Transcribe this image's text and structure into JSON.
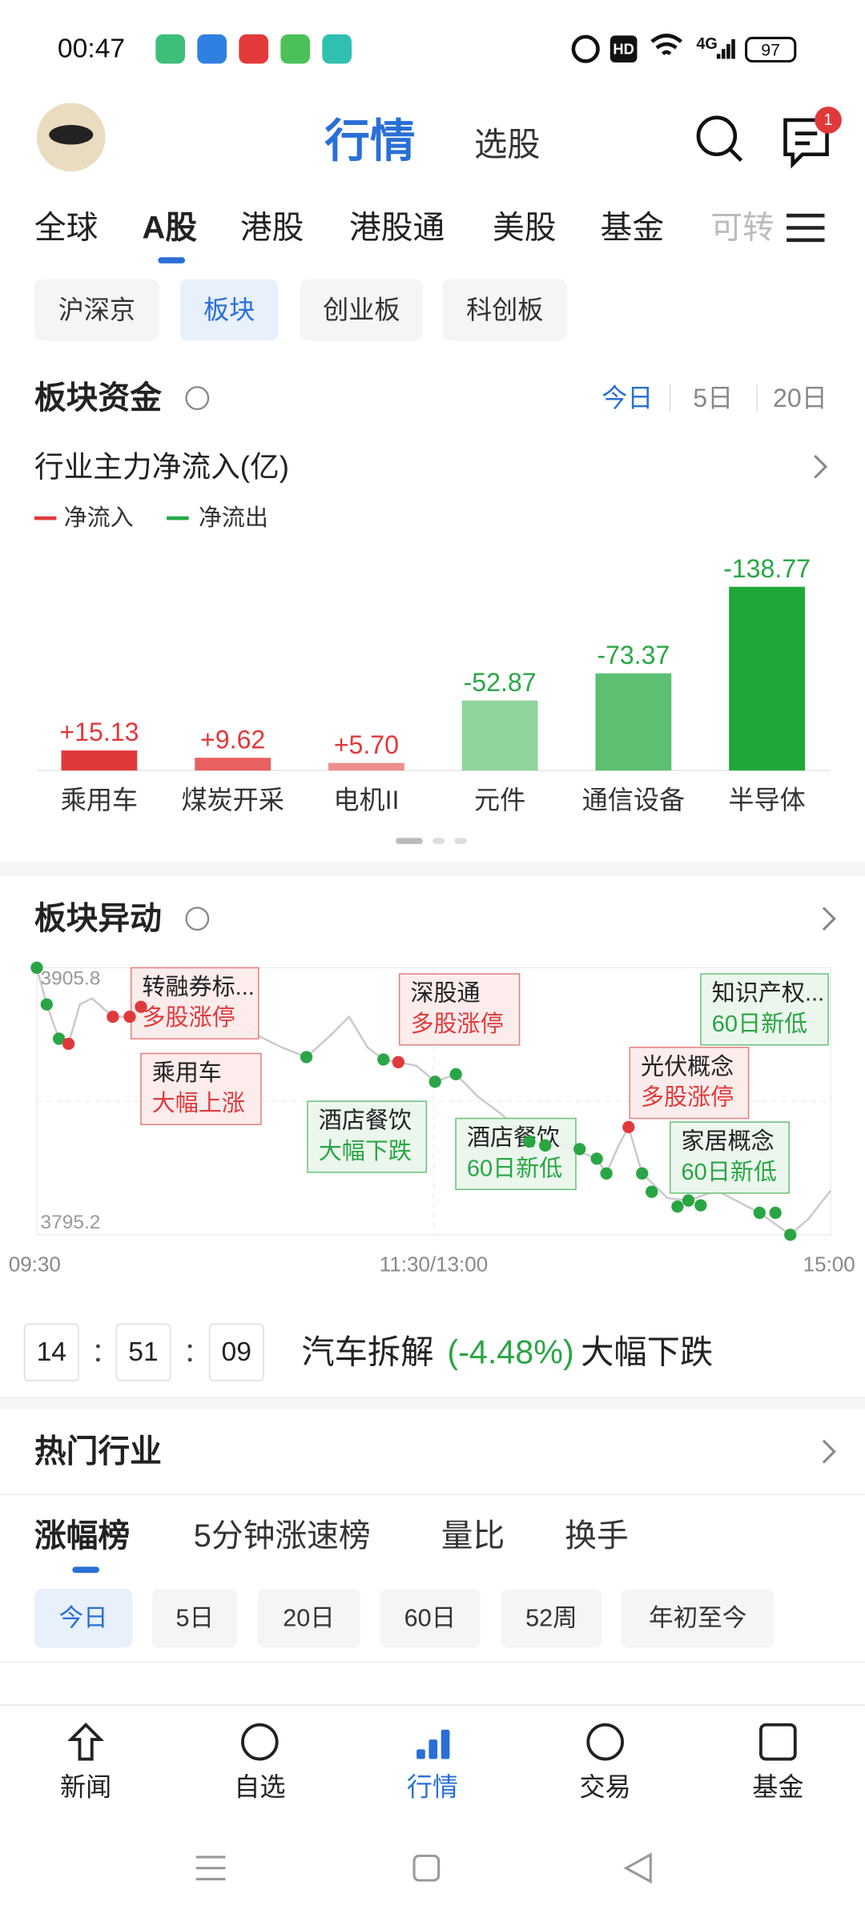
{
  "status": {
    "time": "00:47",
    "hd": "HD",
    "network": "4G",
    "battery": 97
  },
  "header": {
    "tabs": [
      "行情",
      "选股"
    ],
    "badge": 1
  },
  "market_tabs": [
    "全球",
    "A股",
    "港股",
    "港股通",
    "美股",
    "基金",
    "可转"
  ],
  "board_tabs": [
    "沪深京",
    "板块",
    "创业板",
    "科创板"
  ],
  "fund": {
    "title": "板块资金",
    "periods": [
      "今日",
      "5日",
      "20日"
    ],
    "chart_data": {
      "type": "bar",
      "title": "行业主力净流入(亿)",
      "legend": [
        {
          "name": "净流入",
          "color": "#e0393b"
        },
        {
          "name": "净流出",
          "color": "#29a745"
        }
      ],
      "categories": [
        "乘用车",
        "煤炭开采",
        "电机II",
        "元件",
        "通信设备",
        "半导体"
      ],
      "values": [
        15.13,
        9.62,
        5.7,
        -52.87,
        -73.37,
        -138.77
      ],
      "value_labels": [
        "+15.13",
        "+9.62",
        "+5.70",
        "-52.87",
        "-73.37",
        "-138.77"
      ],
      "colors": [
        "#e0393b",
        "#e8605f",
        "#ec8f8e",
        "#8fd49b",
        "#5cc070",
        "#1fa83a"
      ]
    }
  },
  "abnormal": {
    "title": "板块异动",
    "chart_data": {
      "type": "line",
      "color": "#c9c9c9",
      "xlim": [
        0,
        240
      ],
      "xticks": [
        {
          "value": 0,
          "label": "09:30"
        },
        {
          "value": 120,
          "label": "11:30/13:00"
        },
        {
          "value": 240,
          "label": "15:00"
        }
      ],
      "ylim": [
        3795.2,
        3905.8
      ],
      "yticks": [
        3795.2,
        3905.8
      ],
      "x": [
        0,
        3.0,
        6.7,
        9.6,
        13.0,
        16.7,
        23.0,
        28.1,
        31.5,
        40.7,
        51.9,
        63.0,
        74.1,
        81.5,
        88.9,
        94.4,
        100.0,
        104.8,
        114.8,
        120.4,
        126.7,
        133.3,
        140.7,
        148.9,
        159.3,
        169.3,
        172.2,
        175.9,
        178.9,
        183.0,
        190.7,
        197.0,
        205.6,
        218.5,
        227.8,
        233.3,
        240
      ],
      "values": [
        3905.8,
        3890.6,
        3876.4,
        3874.3,
        3890.6,
        3893.1,
        3885.5,
        3885.5,
        3889.6,
        3883.0,
        3888.0,
        3880.4,
        3872.8,
        3868.8,
        3877.9,
        3885.5,
        3872.8,
        3867.8,
        3865.2,
        3858.6,
        3861.7,
        3852.5,
        3844.9,
        3833.8,
        3832.2,
        3826.7,
        3820.6,
        3832.2,
        3839.8,
        3820.6,
        3810.4,
        3809.4,
        3813.5,
        3804.3,
        3795.2,
        3801.8,
        3813.5
      ],
      "markers": {
        "x": [
          0,
          3.0,
          6.7,
          9.6,
          23.0,
          28.1,
          31.5,
          81.5,
          104.8,
          109.3,
          120.4,
          126.7,
          148.9,
          153.7,
          164.1,
          169.3,
          172.2,
          178.9,
          183.0,
          185.9,
          193.7,
          197.0,
          200.7,
          218.5,
          223.3,
          227.8
        ],
        "values": [
          3905.8,
          3890.6,
          3876.4,
          3874.3,
          3885.5,
          3885.5,
          3889.6,
          3868.8,
          3867.8,
          3866.7,
          3858.6,
          3861.7,
          3833.8,
          3832.2,
          3830.7,
          3826.7,
          3820.6,
          3839.8,
          3820.6,
          3813.0,
          3806.9,
          3809.4,
          3807.4,
          3804.3,
          3804.3,
          3795.2
        ],
        "colors": [
          "#2aa545",
          "#2aa545",
          "#2aa545",
          "#e0393b",
          "#e0393b",
          "#e0393b",
          "#e0393b",
          "#2aa545",
          "#2aa545",
          "#e0393b",
          "#2aa545",
          "#2aa545",
          "#2aa545",
          "#2aa545",
          "#2aa545",
          "#2aa545",
          "#2aa545",
          "#e0393b",
          "#2aa545",
          "#2aa545",
          "#2aa545",
          "#2aa545",
          "#2aa545",
          "#2aa545",
          "#2aa545",
          "#2aa545"
        ]
      },
      "annotations": [
        {
          "name": "转融券标...",
          "event": "多股涨停",
          "color": "red"
        },
        {
          "name": "乘用车",
          "event": "大幅上涨",
          "color": "red"
        },
        {
          "name": "酒店餐饮",
          "event": "大幅下跌",
          "color": "green"
        },
        {
          "name": "深股通",
          "event": "多股涨停",
          "color": "red"
        },
        {
          "name": "酒店餐饮",
          "event": "60日新低",
          "color": "green"
        },
        {
          "name": "光伏概念",
          "event": "多股涨停",
          "color": "red"
        },
        {
          "name": "知识产权...",
          "event": "60日新低",
          "color": "green"
        },
        {
          "name": "家居概念",
          "event": "60日新低",
          "color": "green"
        }
      ]
    }
  },
  "ticker": {
    "time": [
      "14",
      "51",
      "09"
    ],
    "sector": "汽车拆解",
    "change": "(-4.48%)",
    "event": "大幅下跌"
  },
  "hot": {
    "title": "热门行业",
    "tabs": [
      "涨幅榜",
      "5分钟涨速榜",
      "量比",
      "换手"
    ],
    "periods": [
      "今日",
      "5日",
      "20日",
      "60日",
      "52周",
      "年初至今"
    ]
  },
  "nav": [
    "新闻",
    "自选",
    "行情",
    "交易",
    "基金"
  ]
}
